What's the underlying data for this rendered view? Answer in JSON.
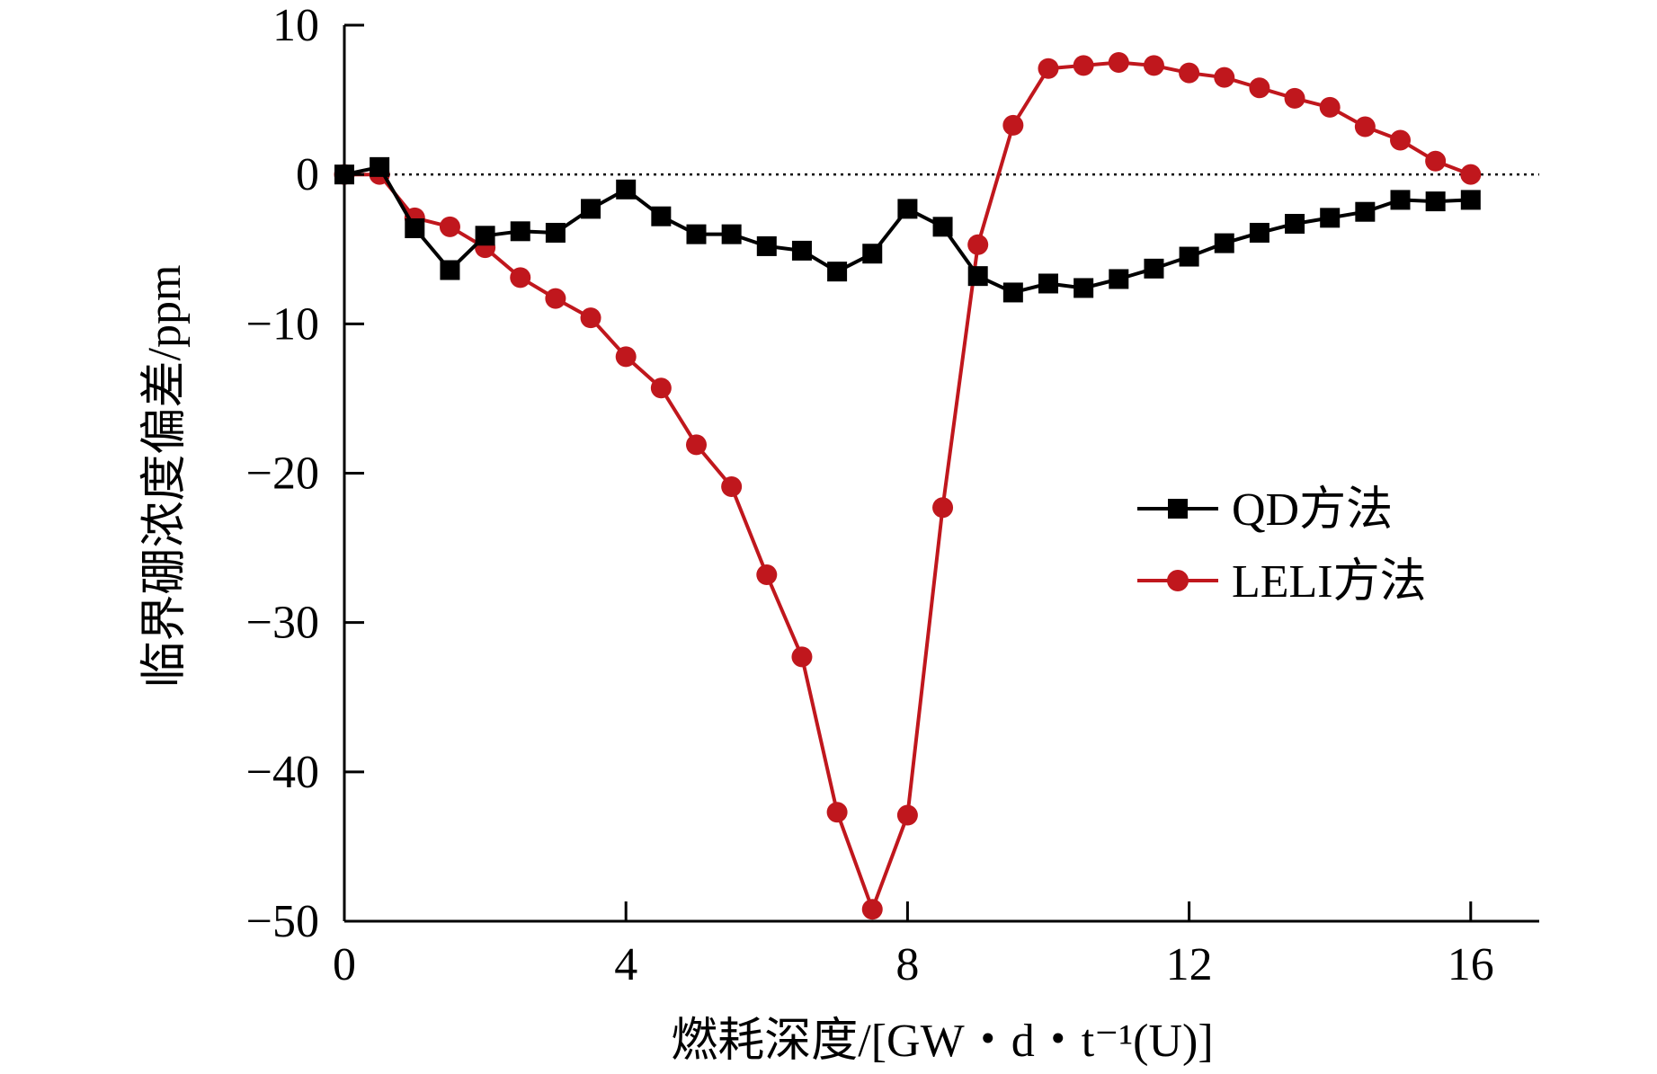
{
  "chart_data": {
    "type": "line",
    "xlabel": "燃耗深度/[GW・d・t⁻¹(U)]",
    "ylabel": "临界硼浓度偏差/ppm",
    "xlim": [
      0,
      17
    ],
    "ylim": [
      -50,
      10
    ],
    "xticks": [
      0,
      4,
      8,
      12,
      16
    ],
    "yticks": [
      10,
      0,
      -10,
      -20,
      -30,
      -40,
      -50
    ],
    "xtick_labels": [
      "0",
      "4",
      "8",
      "12",
      "16"
    ],
    "ytick_labels": [
      "10",
      "0",
      "−10",
      "−20",
      "−30",
      "−40",
      "−50"
    ],
    "reference_line": {
      "y": 0,
      "style": "dotted"
    },
    "legend_position": "right-middle",
    "series": [
      {
        "name": "QD方法",
        "color": "#000000",
        "marker": "square",
        "x": [
          0,
          0.5,
          1,
          1.5,
          2,
          2.5,
          3,
          3.5,
          4,
          4.5,
          5,
          5.5,
          6,
          6.5,
          7,
          7.5,
          8,
          8.5,
          9,
          9.5,
          10,
          10.5,
          11,
          11.5,
          12,
          12.5,
          13,
          13.5,
          14,
          14.5,
          15,
          15.5,
          16
        ],
        "y": [
          0,
          0.5,
          -3.6,
          -6.4,
          -4.1,
          -3.8,
          -3.9,
          -2.3,
          -1.0,
          -2.8,
          -4.0,
          -4.0,
          -4.8,
          -5.1,
          -6.5,
          -5.3,
          -2.3,
          -3.5,
          -6.8,
          -7.9,
          -7.3,
          -7.6,
          -7.0,
          -6.3,
          -5.5,
          -4.6,
          -3.9,
          -3.3,
          -2.9,
          -2.5,
          -1.7,
          -1.8,
          -1.7
        ]
      },
      {
        "name": "LELI方法",
        "color": "#c0171d",
        "marker": "circle",
        "x": [
          0,
          0.5,
          1,
          1.5,
          2,
          2.5,
          3,
          3.5,
          4,
          4.5,
          5,
          5.5,
          6,
          6.5,
          7,
          7.5,
          8,
          8.5,
          9,
          9.5,
          10,
          10.5,
          11,
          11.5,
          12,
          12.5,
          13,
          13.5,
          14,
          14.5,
          15,
          15.5,
          16
        ],
        "y": [
          0,
          0,
          -2.9,
          -3.5,
          -4.9,
          -6.9,
          -8.3,
          -9.6,
          -12.2,
          -14.3,
          -18.1,
          -20.9,
          -26.8,
          -32.3,
          -42.7,
          -49.2,
          -42.9,
          -22.3,
          -4.7,
          3.3,
          7.1,
          7.3,
          7.5,
          7.3,
          6.8,
          6.5,
          5.8,
          5.1,
          4.5,
          3.2,
          2.3,
          0.9,
          0
        ]
      }
    ]
  }
}
